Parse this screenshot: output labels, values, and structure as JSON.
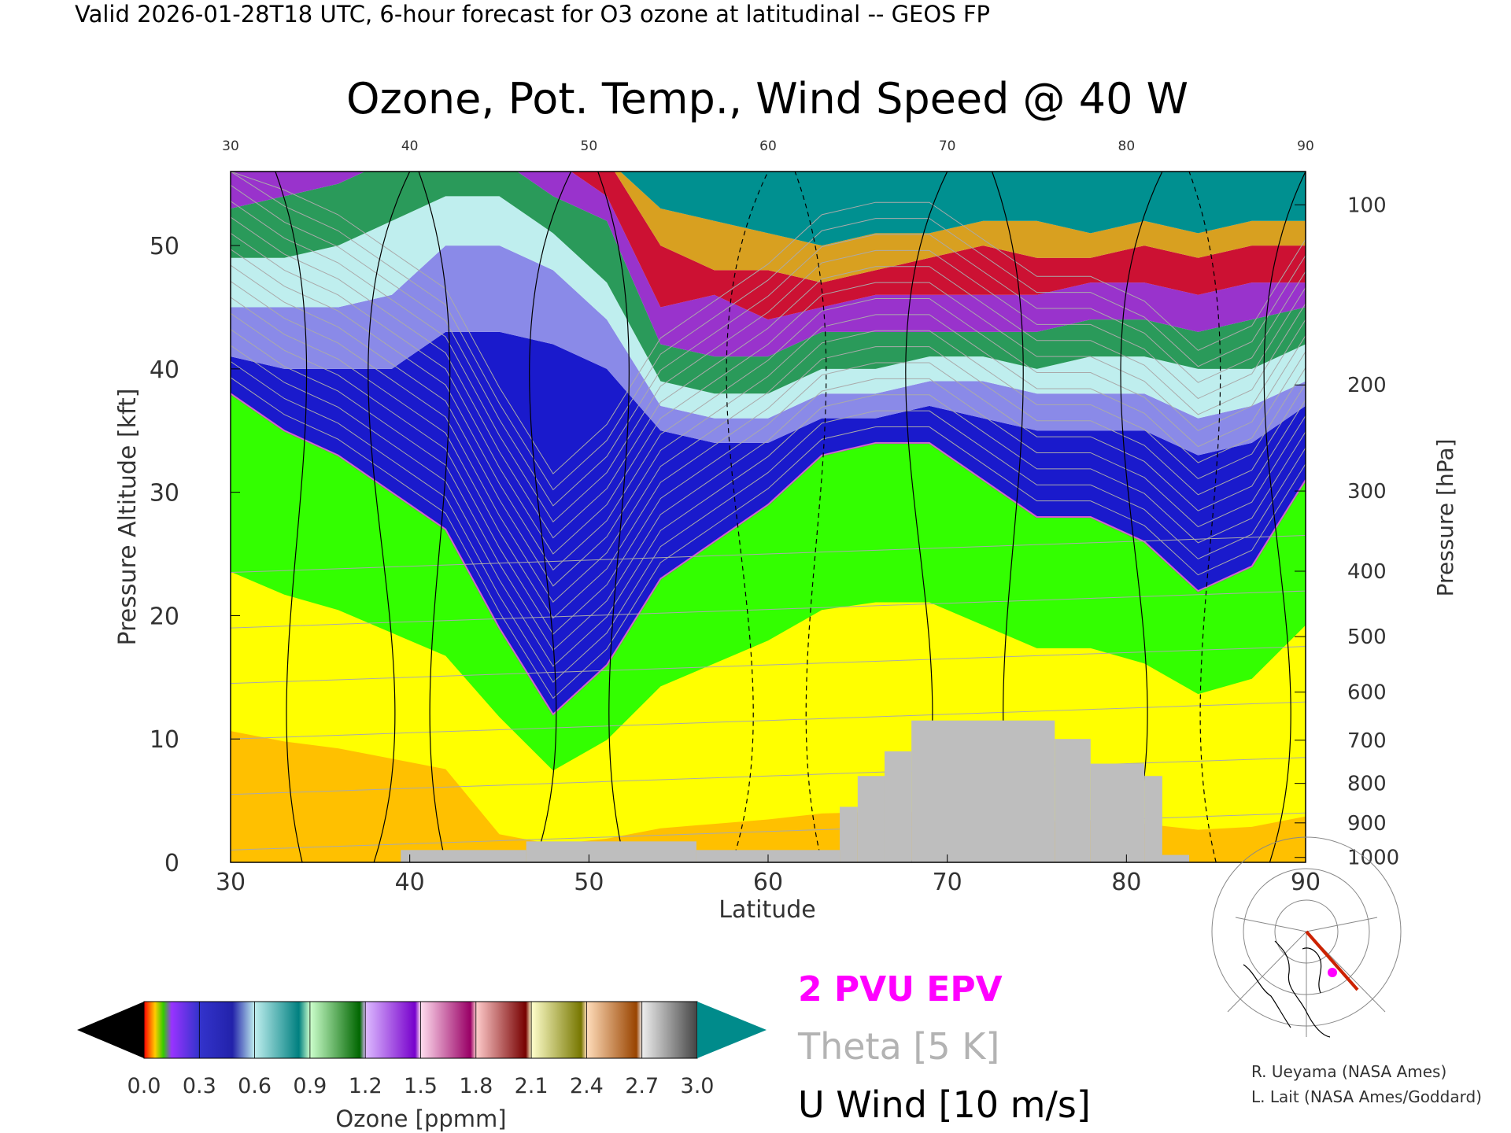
{
  "header": "Valid 2026-01-28T18 UTC, 6-hour forecast for O3 ozone at latitudinal -- GEOS FP",
  "chart_data": {
    "type": "heatmap",
    "title": "Ozone, Pot. Temp., Wind Speed @ 40 W",
    "xlabel": "Latitude",
    "ylabel": "Pressure Altitude [kft]",
    "y2label": "Pressure [hPa]",
    "xlim": [
      30,
      90
    ],
    "ylim": [
      0,
      56
    ],
    "x_ticks": [
      30,
      40,
      50,
      60,
      70,
      80,
      90
    ],
    "x_tick_labels": [
      "30",
      "40",
      "50",
      "60",
      "70",
      "80",
      "90"
    ],
    "y_ticks": [
      0,
      10,
      20,
      30,
      40,
      50
    ],
    "y_tick_labels": [
      "0",
      "10",
      "20",
      "30",
      "40",
      "50"
    ],
    "pressure_ticks": [
      {
        "label": "100",
        "alt": 53.3
      },
      {
        "label": "200",
        "alt": 38.7
      },
      {
        "label": "300",
        "alt": 30.1
      },
      {
        "label": "400",
        "alt": 23.6
      },
      {
        "label": "500",
        "alt": 18.3
      },
      {
        "label": "600",
        "alt": 13.8
      },
      {
        "label": "700",
        "alt": 9.9
      },
      {
        "label": "800",
        "alt": 6.4
      },
      {
        "label": "900",
        "alt": 3.2
      },
      {
        "label": "1000",
        "alt": 0.4
      }
    ],
    "ozone_profile": {
      "latitudes": [
        30,
        33,
        36,
        39,
        42,
        45,
        48,
        51,
        54,
        57,
        60,
        63,
        66,
        69,
        72,
        75,
        78,
        81,
        84,
        87,
        90
      ],
      "tropopause_kft": [
        38,
        35,
        33,
        30,
        27,
        19,
        12,
        16,
        23,
        26,
        29,
        33,
        34,
        34,
        31,
        28,
        28,
        26,
        22,
        24,
        31
      ],
      "isolines_ppmm": [
        0.1,
        0.2,
        0.3,
        0.5,
        0.8,
        1.1,
        1.4,
        1.7,
        2.0,
        2.3,
        2.6,
        2.9
      ],
      "upper_levels_kft": [
        [
          41,
          40,
          40,
          40,
          43,
          43,
          42,
          40,
          35,
          34,
          34,
          36,
          36,
          37,
          36,
          35,
          35,
          35,
          33,
          34,
          37
        ],
        [
          45,
          45,
          45,
          46,
          50,
          50,
          48,
          44,
          37,
          36,
          36,
          38,
          38,
          39,
          39,
          38,
          38,
          38,
          36,
          37,
          39
        ],
        [
          49,
          49,
          50,
          52,
          54,
          54,
          51,
          47,
          39,
          38,
          38,
          40,
          40,
          41,
          41,
          40,
          41,
          41,
          40,
          40,
          42
        ],
        [
          53,
          54,
          55,
          57,
          57,
          57,
          54,
          52,
          42,
          41,
          41,
          43,
          43,
          43,
          43,
          43,
          44,
          44,
          43,
          44,
          45
        ],
        [
          57,
          57,
          57,
          57,
          57,
          57,
          57,
          54,
          45,
          46,
          44,
          45,
          46,
          46,
          46,
          46,
          47,
          47,
          46,
          47,
          47
        ],
        [
          57,
          57,
          57,
          57,
          57,
          57,
          57,
          57,
          50,
          48,
          48,
          47,
          48,
          49,
          50,
          49,
          49,
          50,
          49,
          50,
          50
        ],
        [
          57,
          57,
          57,
          57,
          57,
          57,
          57,
          57,
          53,
          52,
          51,
          50,
          51,
          51,
          52,
          52,
          51,
          52,
          51,
          52,
          52
        ]
      ]
    },
    "terrain_kft": [
      {
        "from": 39.5,
        "to": 46.5,
        "top": 1.0
      },
      {
        "from": 46.5,
        "to": 56,
        "top": 1.7
      },
      {
        "from": 56,
        "to": 64,
        "top": 1.0
      },
      {
        "from": 64,
        "to": 65,
        "top": 4.5
      },
      {
        "from": 65,
        "to": 66.5,
        "top": 7.0
      },
      {
        "from": 66.5,
        "to": 68,
        "top": 9.0
      },
      {
        "from": 68,
        "to": 76,
        "top": 11.5
      },
      {
        "from": 76,
        "to": 78,
        "top": 10.0
      },
      {
        "from": 78,
        "to": 81,
        "top": 8.0
      },
      {
        "from": 81,
        "to": 82,
        "top": 7.0
      },
      {
        "from": 82,
        "to": 83.5,
        "top": 0.6
      }
    ],
    "colorbar": {
      "label": "Ozone [ppmm]",
      "tick_labels": [
        "0.0",
        "0.3",
        "0.6",
        "0.9",
        "1.2",
        "1.5",
        "1.8",
        "2.1",
        "2.4",
        "2.7",
        "3.0"
      ],
      "range": [
        0.0,
        3.0
      ]
    },
    "legend": [
      {
        "text": "2 PVU EPV",
        "color": "#ff00ff"
      },
      {
        "text": "Theta [5 K]",
        "color": "#b3b3b3"
      },
      {
        "text": "U Wind [10 m/s]",
        "color": "#000000"
      }
    ],
    "grid": false
  },
  "credits": [
    "R. Ueyama (NASA Ames)",
    "L. Lait (NASA Ames/Goddard)"
  ],
  "colors": {
    "tropo_yellow": "#ffff00",
    "tropo_orange": "#ffc000",
    "tropo_green": "#33ff00",
    "terrain": "#bebebe",
    "epv_line": "#ff00ff",
    "ozone_teal": "#009090"
  }
}
